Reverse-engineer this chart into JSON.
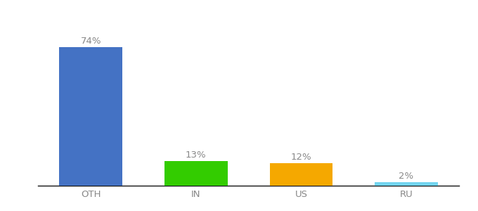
{
  "categories": [
    "OTH",
    "IN",
    "US",
    "RU"
  ],
  "values": [
    74,
    13,
    12,
    2
  ],
  "bar_colors": [
    "#4472c4",
    "#33cc00",
    "#f5a800",
    "#72d4ef"
  ],
  "labels": [
    "74%",
    "13%",
    "12%",
    "2%"
  ],
  "ylim": [
    0,
    88
  ],
  "xlim": [
    -0.5,
    3.5
  ],
  "background_color": "#ffffff",
  "label_color": "#888888",
  "label_fontsize": 9.5,
  "tick_fontsize": 9.5,
  "bar_width": 0.6
}
